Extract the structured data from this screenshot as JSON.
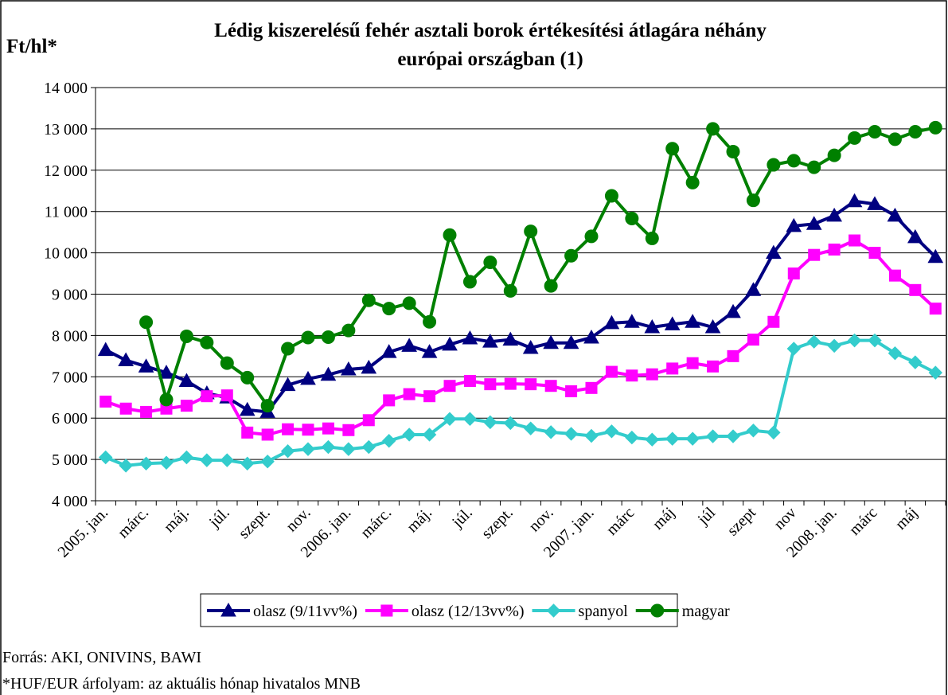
{
  "chart_data": {
    "type": "line",
    "title": [
      "Lédig kiszerelésű fehér asztali borok értékesítési átlagára néhány",
      "európai országban (1)"
    ],
    "y_label": "Ft/hl*",
    "notes": [
      "Forrás: AKI, ONIVINS, BAWI",
      "*HUF/EUR árfolyam: az aktuális hónap hivatalos MNB"
    ],
    "categories": [
      "2005. jan.",
      null,
      "márc.",
      null,
      "máj.",
      null,
      "júl.",
      null,
      "szept.",
      null,
      "nov.",
      null,
      "2006. jan.",
      null,
      "márc.",
      null,
      "máj.",
      null,
      "júl.",
      null,
      "szept.",
      null,
      "nov.",
      null,
      "2007. jan.",
      null,
      "márc",
      null,
      "máj",
      null,
      "júl",
      null,
      "szept",
      null,
      "nov",
      null,
      "2008. jan.",
      null,
      "márc",
      null,
      "máj",
      null
    ],
    "series": [
      {
        "name": "olasz (9/11vv%)",
        "color": "#000080",
        "marker": "triangle",
        "values": [
          7650,
          7400,
          7250,
          7100,
          6900,
          6600,
          6500,
          6200,
          6150,
          6800,
          6950,
          7050,
          7180,
          7220,
          7600,
          7750,
          7600,
          7780,
          7930,
          7850,
          7900,
          7700,
          7820,
          7820,
          7950,
          8300,
          8330,
          8200,
          8270,
          8330,
          8200,
          8570,
          9100,
          10000,
          10650,
          10700,
          10900,
          11250,
          11180,
          10900,
          10380,
          9900
        ]
      },
      {
        "name": "olasz (12/13vv%)",
        "color": "#ff00ff",
        "marker": "square",
        "values": [
          6400,
          6230,
          6150,
          6230,
          6300,
          6530,
          6550,
          5650,
          5600,
          5730,
          5720,
          5750,
          5710,
          5950,
          6430,
          6580,
          6530,
          6780,
          6900,
          6820,
          6830,
          6820,
          6780,
          6650,
          6730,
          7120,
          7030,
          7060,
          7200,
          7330,
          7250,
          7500,
          7900,
          8330,
          9500,
          9950,
          10080,
          10300,
          10000,
          9450,
          9100,
          8650
        ]
      },
      {
        "name": "spanyol",
        "color": "#33cccc",
        "marker": "diamond",
        "values": [
          5050,
          4850,
          4900,
          4920,
          5050,
          4980,
          4980,
          4900,
          4950,
          5200,
          5250,
          5300,
          5250,
          5300,
          5450,
          5600,
          5600,
          5980,
          5980,
          5900,
          5880,
          5750,
          5660,
          5620,
          5570,
          5680,
          5530,
          5480,
          5500,
          5500,
          5560,
          5560,
          5700,
          5650,
          7680,
          7850,
          7750,
          7880,
          7880,
          7570,
          7350,
          7100
        ]
      },
      {
        "name": "magyar",
        "color": "#008000",
        "marker": "circle",
        "values": [
          null,
          null,
          8320,
          6450,
          7980,
          7830,
          7330,
          6980,
          6300,
          7680,
          7950,
          7960,
          8120,
          8850,
          8650,
          8780,
          8330,
          10430,
          9300,
          9770,
          9080,
          10520,
          9200,
          9930,
          10400,
          11380,
          10830,
          10350,
          12520,
          11700,
          13000,
          12450,
          11270,
          12130,
          12230,
          12070,
          12360,
          12780,
          12930,
          12750,
          12930,
          13030
        ]
      }
    ],
    "ylim": [
      4000,
      14000
    ],
    "yticks": [
      {
        "value": 4000,
        "label": "4 000"
      },
      {
        "value": 5000,
        "label": "5 000"
      },
      {
        "value": 6000,
        "label": "6 000"
      },
      {
        "value": 7000,
        "label": "7 000"
      },
      {
        "value": 8000,
        "label": "8 000"
      },
      {
        "value": 9000,
        "label": "9 000"
      },
      {
        "value": 10000,
        "label": "10 000"
      },
      {
        "value": 11000,
        "label": "11 000"
      },
      {
        "value": 12000,
        "label": "12 000"
      },
      {
        "value": 13000,
        "label": "13 000"
      },
      {
        "value": 14000,
        "label": "14 000"
      }
    ],
    "grid": true,
    "legend": "bottom"
  }
}
